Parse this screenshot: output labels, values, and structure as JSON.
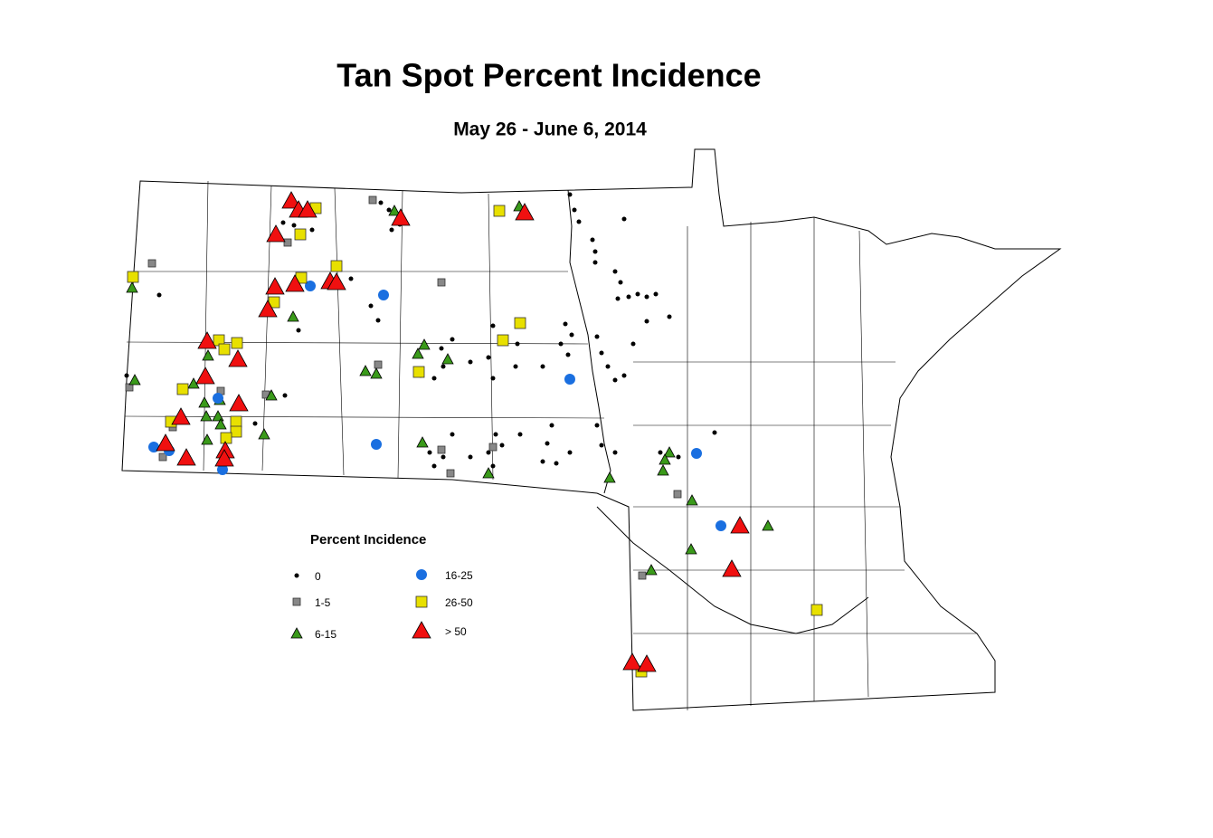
{
  "title": "Tan Spot Percent Incidence",
  "subtitle": "May 26 - June 6, 2014",
  "legend": {
    "title": "Percent Incidence",
    "items": [
      "0",
      "1-5",
      "6-15",
      "16-25",
      "26-50",
      "> 50"
    ]
  }
}
